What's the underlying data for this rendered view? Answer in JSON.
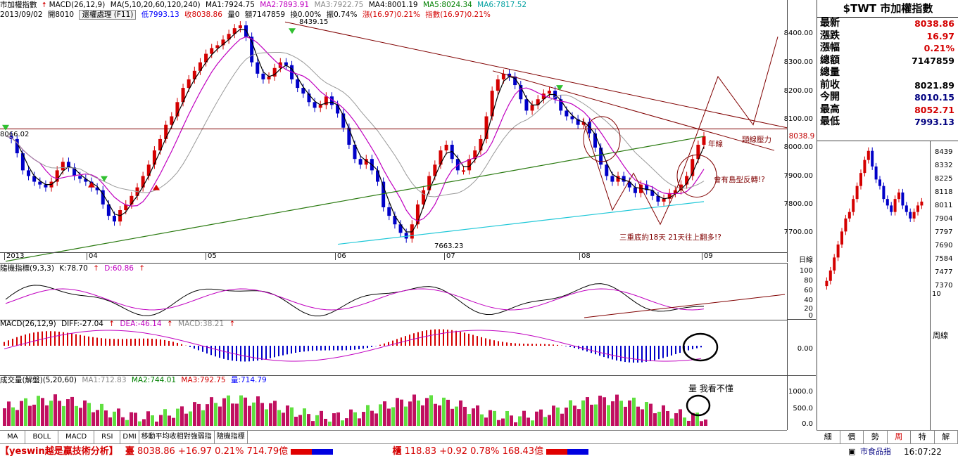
{
  "header": {
    "title": "市加權指數",
    "macd_short": "MACD(26,12,9)",
    "ma_params": "MA(5,10,20,60,120,240)",
    "ma1": "MA1:7924.75",
    "ma2": "MA2:7893.91",
    "ma3": "MA3:7922.75",
    "ma4": "MA4:8001.19",
    "ma5": "MA5:8024.34",
    "ma6": "MA6:7817.52",
    "date": "2013/09/02",
    "open": "開8010",
    "adjust_btn": "還權處理 (F11)",
    "low": "低7993.13",
    "close": "收8038.86",
    "vol0": "量0",
    "amount": "額7147859",
    "turnover": "換0.00%",
    "amplitude": "振0.74%",
    "change": "漲(16.97)0.21%",
    "index_chg": "指數(16.97)0.21%"
  },
  "price_panel": {
    "yticks": [
      "8400.00",
      "8300.00",
      "8200.00",
      "8100.00",
      "8000.00",
      "7900.00",
      "7800.00",
      "7700.00"
    ],
    "high_label": "8439.15",
    "low_label": "7663.23",
    "left_label": "8066.02",
    "price_tag": "8038.9",
    "x_labels": [
      "2013",
      "04",
      "05",
      "06",
      "07",
      "08",
      "09"
    ],
    "x_unit": "日線",
    "annotations": {
      "neckline": "頸線壓力",
      "year_line": "年線",
      "island": "會有島型反轉!?",
      "triple": "三重底約18天  21天往上翻多!?"
    }
  },
  "kd_panel": {
    "title": "隨機指標(9,3,3)",
    "k": "K:78.70",
    "d": "D:60.86",
    "yticks": [
      "100",
      "80",
      "60",
      "40",
      "20",
      "0"
    ]
  },
  "macd_panel": {
    "title": "MACD(26,12,9)",
    "diff": "DIFF:-27.04",
    "dea": "DEA:-46.14",
    "macd": "MACD:38.21",
    "ytick": "0.00"
  },
  "vol_panel": {
    "title": "成交量(解盤)(5,20,60)",
    "ma1": "MA1:712.83",
    "ma2": "MA2:744.01",
    "ma3": "MA3:792.75",
    "vol": "量:714.79",
    "note": "量 我看不懂",
    "yticks": [
      "1000.0",
      "500.0",
      "0.0"
    ]
  },
  "tabs": [
    "MA",
    "BOLL",
    "MACD",
    "RSI",
    "DMI",
    "移動平均收相對強弱指",
    "隨機指標"
  ],
  "side": {
    "title": "$TWT 市加權指數",
    "rows": [
      {
        "label": "最新",
        "value": "8038.86",
        "color": "#d40000"
      },
      {
        "label": "漲跌",
        "value": "16.97",
        "color": "#d40000"
      },
      {
        "label": "漲幅",
        "value": "0.21%",
        "color": "#d40000"
      },
      {
        "label": "總額",
        "value": "7147859",
        "color": "#000000"
      },
      {
        "label": "總量",
        "value": "",
        "color": "#000000"
      },
      {
        "label": "前收",
        "value": "8021.89",
        "color": "#000000"
      },
      {
        "label": "今開",
        "value": "8010.15",
        "color": "#000080"
      },
      {
        "label": "最高",
        "value": "8052.71",
        "color": "#d40000"
      },
      {
        "label": "最低",
        "value": "7993.13",
        "color": "#000080"
      }
    ],
    "mini_yticks": [
      "8439",
      "8332",
      "8225",
      "8118",
      "8011",
      "7904",
      "7797",
      "7690",
      "7584",
      "7477",
      "7370"
    ],
    "mini_vol": "10",
    "mini_unit": "周線",
    "tabs": [
      "細",
      "價",
      "勢",
      "周",
      "特",
      "解"
    ]
  },
  "status": {
    "brand": "【yeswin越是贏技術分析】",
    "idx1_name": "臺",
    "idx1": "8038.86 +16.97  0.21% 714.79億",
    "idx2_name": "櫃",
    "idx2": "118.83 +0.92  0.78% 168.43億",
    "news": "市食品指",
    "time": "16:07:22"
  },
  "colors": {
    "up": "#d40000",
    "down": "#0000c8",
    "magenta": "#c000c0",
    "green": "#2a7a10",
    "cyan": "#20c8d8",
    "vol_up": "#c01060",
    "vol_dn": "#60e040"
  }
}
